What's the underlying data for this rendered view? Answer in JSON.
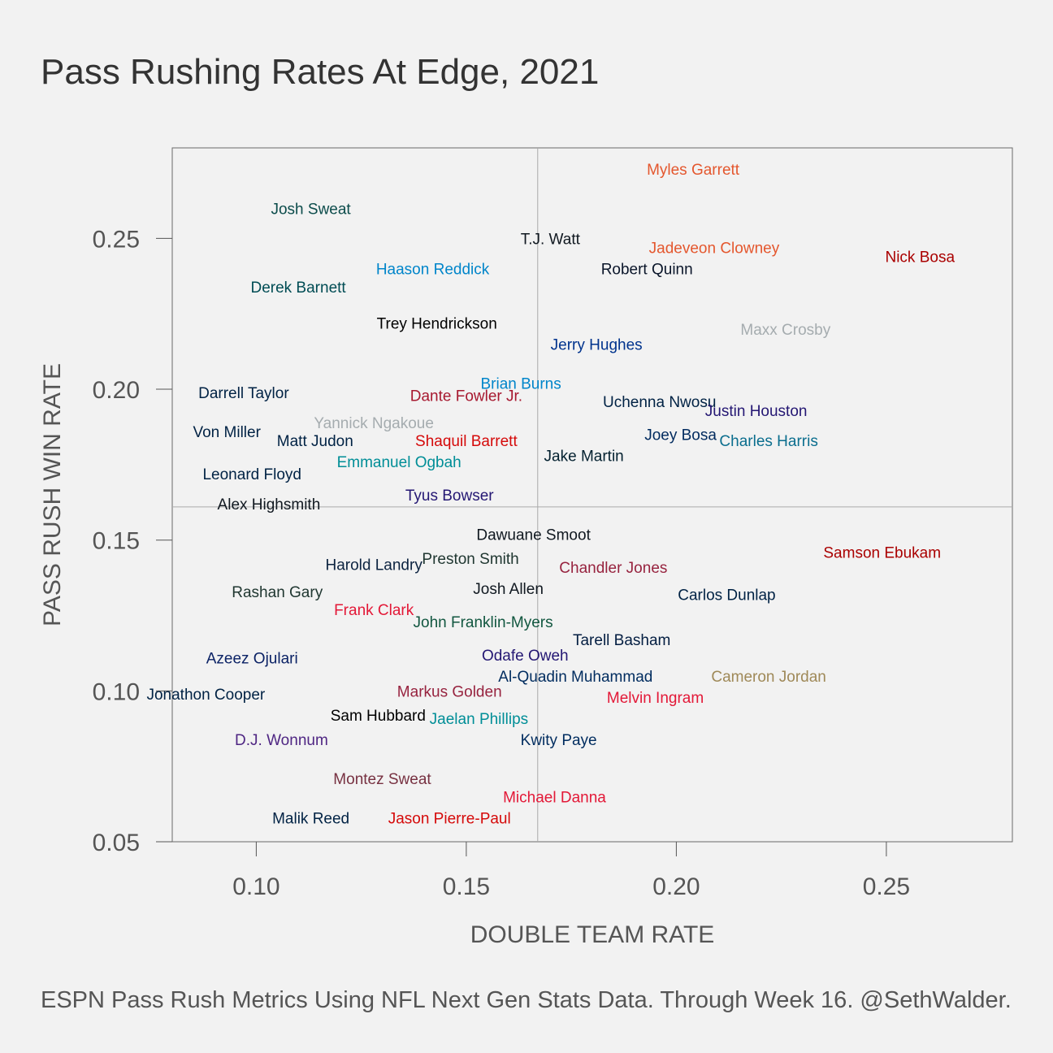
{
  "chart_data": {
    "type": "scatter",
    "title": "Pass Rushing Rates At Edge, 2021",
    "xlabel": "DOUBLE TEAM RATE",
    "ylabel": "PASS RUSH WIN RATE",
    "caption": "ESPN Pass Rush Metrics Using NFL Next Gen Stats Data. Through Week 16. @SethWalder.",
    "xlim": [
      0.08,
      0.28
    ],
    "ylim": [
      0.05,
      0.28
    ],
    "x_ticks": [
      {
        "value": 0.1,
        "label": "0.10"
      },
      {
        "value": 0.15,
        "label": "0.15"
      },
      {
        "value": 0.2,
        "label": "0.20"
      },
      {
        "value": 0.25,
        "label": "0.25"
      }
    ],
    "y_ticks": [
      {
        "value": 0.05,
        "label": "0.05"
      },
      {
        "value": 0.1,
        "label": "0.10"
      },
      {
        "value": 0.15,
        "label": "0.15"
      },
      {
        "value": 0.2,
        "label": "0.20"
      },
      {
        "value": 0.25,
        "label": "0.25"
      }
    ],
    "reference_lines": {
      "x": 0.167,
      "y": 0.161
    },
    "grid": false,
    "points": [
      {
        "label": "Myles Garrett",
        "x": 0.204,
        "y": 0.273,
        "color": "#e4572e"
      },
      {
        "label": "Josh Sweat",
        "x": 0.113,
        "y": 0.26,
        "color": "#0c4c4b"
      },
      {
        "label": "T.J. Watt",
        "x": 0.17,
        "y": 0.25,
        "color": "#101820"
      },
      {
        "label": "Jadeveon Clowney",
        "x": 0.209,
        "y": 0.247,
        "color": "#e4572e"
      },
      {
        "label": "Nick Bosa",
        "x": 0.258,
        "y": 0.244,
        "color": "#aa0000"
      },
      {
        "label": "Haason Reddick",
        "x": 0.142,
        "y": 0.24,
        "color": "#0085ca"
      },
      {
        "label": "Robert Quinn",
        "x": 0.193,
        "y": 0.24,
        "color": "#0b162a"
      },
      {
        "label": "Derek Barnett",
        "x": 0.11,
        "y": 0.234,
        "color": "#004c54"
      },
      {
        "label": "Trey Hendrickson",
        "x": 0.143,
        "y": 0.222,
        "color": "#000000"
      },
      {
        "label": "Maxx Crosby",
        "x": 0.226,
        "y": 0.22,
        "color": "#a5acaf"
      },
      {
        "label": "Jerry Hughes",
        "x": 0.181,
        "y": 0.215,
        "color": "#00338d"
      },
      {
        "label": "Brian Burns",
        "x": 0.163,
        "y": 0.202,
        "color": "#0085ca"
      },
      {
        "label": "Darrell Taylor",
        "x": 0.097,
        "y": 0.199,
        "color": "#002244"
      },
      {
        "label": "Dante Fowler Jr.",
        "x": 0.15,
        "y": 0.198,
        "color": "#a71930"
      },
      {
        "label": "Uchenna Nwosu",
        "x": 0.196,
        "y": 0.196,
        "color": "#002244"
      },
      {
        "label": "Justin Houston",
        "x": 0.219,
        "y": 0.193,
        "color": "#241773"
      },
      {
        "label": "Yannick Ngakoue",
        "x": 0.128,
        "y": 0.189,
        "color": "#a5acaf"
      },
      {
        "label": "Von Miller",
        "x": 0.093,
        "y": 0.186,
        "color": "#002244"
      },
      {
        "label": "Joey Bosa",
        "x": 0.201,
        "y": 0.185,
        "color": "#002a5e"
      },
      {
        "label": "Matt Judon",
        "x": 0.114,
        "y": 0.183,
        "color": "#002244"
      },
      {
        "label": "Shaquil Barrett",
        "x": 0.15,
        "y": 0.183,
        "color": "#d50a0a"
      },
      {
        "label": "Charles Harris",
        "x": 0.222,
        "y": 0.183,
        "color": "#0b6e8e"
      },
      {
        "label": "Jake Martin",
        "x": 0.178,
        "y": 0.178,
        "color": "#03202f"
      },
      {
        "label": "Emmanuel Ogbah",
        "x": 0.134,
        "y": 0.176,
        "color": "#008e97"
      },
      {
        "label": "Leonard Floyd",
        "x": 0.099,
        "y": 0.172,
        "color": "#002244"
      },
      {
        "label": "Tyus Bowser",
        "x": 0.146,
        "y": 0.165,
        "color": "#241773"
      },
      {
        "label": "Alex Highsmith",
        "x": 0.103,
        "y": 0.162,
        "color": "#101820"
      },
      {
        "label": "Dawuane Smoot",
        "x": 0.166,
        "y": 0.152,
        "color": "#101820"
      },
      {
        "label": "Preston Smith",
        "x": 0.151,
        "y": 0.144,
        "color": "#203731"
      },
      {
        "label": "Harold Landry",
        "x": 0.128,
        "y": 0.142,
        "color": "#0c2340"
      },
      {
        "label": "Samson Ebukam",
        "x": 0.249,
        "y": 0.146,
        "color": "#aa0000"
      },
      {
        "label": "Chandler Jones",
        "x": 0.185,
        "y": 0.141,
        "color": "#97233f"
      },
      {
        "label": "Josh Allen",
        "x": 0.16,
        "y": 0.134,
        "color": "#101820"
      },
      {
        "label": "Rashan Gary",
        "x": 0.105,
        "y": 0.133,
        "color": "#203731"
      },
      {
        "label": "Carlos Dunlap",
        "x": 0.212,
        "y": 0.132,
        "color": "#002244"
      },
      {
        "label": "Frank Clark",
        "x": 0.128,
        "y": 0.127,
        "color": "#e31837"
      },
      {
        "label": "John Franklin-Myers",
        "x": 0.154,
        "y": 0.123,
        "color": "#125740"
      },
      {
        "label": "Tarell Basham",
        "x": 0.187,
        "y": 0.117,
        "color": "#041e42"
      },
      {
        "label": "Odafe Oweh",
        "x": 0.164,
        "y": 0.112,
        "color": "#241773"
      },
      {
        "label": "Azeez Ojulari",
        "x": 0.099,
        "y": 0.111,
        "color": "#0b2265"
      },
      {
        "label": "Al-Quadin Muhammad",
        "x": 0.176,
        "y": 0.105,
        "color": "#002c5f"
      },
      {
        "label": "Cameron Jordan",
        "x": 0.222,
        "y": 0.105,
        "color": "#9f8958"
      },
      {
        "label": "Markus Golden",
        "x": 0.146,
        "y": 0.1,
        "color": "#97233f"
      },
      {
        "label": "Jonathon Cooper",
        "x": 0.088,
        "y": 0.099,
        "color": "#002244"
      },
      {
        "label": "Melvin Ingram",
        "x": 0.195,
        "y": 0.098,
        "color": "#e31837"
      },
      {
        "label": "Sam Hubbard",
        "x": 0.129,
        "y": 0.092,
        "color": "#000000"
      },
      {
        "label": "Jaelan Phillips",
        "x": 0.153,
        "y": 0.091,
        "color": "#008e97"
      },
      {
        "label": "D.J. Wonnum",
        "x": 0.106,
        "y": 0.084,
        "color": "#4f2683"
      },
      {
        "label": "Kwity Paye",
        "x": 0.172,
        "y": 0.084,
        "color": "#002c5f"
      },
      {
        "label": "Montez Sweat",
        "x": 0.13,
        "y": 0.071,
        "color": "#773141"
      },
      {
        "label": "Michael Danna",
        "x": 0.171,
        "y": 0.065,
        "color": "#e31837"
      },
      {
        "label": "Malik Reed",
        "x": 0.113,
        "y": 0.058,
        "color": "#002244"
      },
      {
        "label": "Jason Pierre-Paul",
        "x": 0.146,
        "y": 0.058,
        "color": "#d50a0a"
      }
    ]
  }
}
